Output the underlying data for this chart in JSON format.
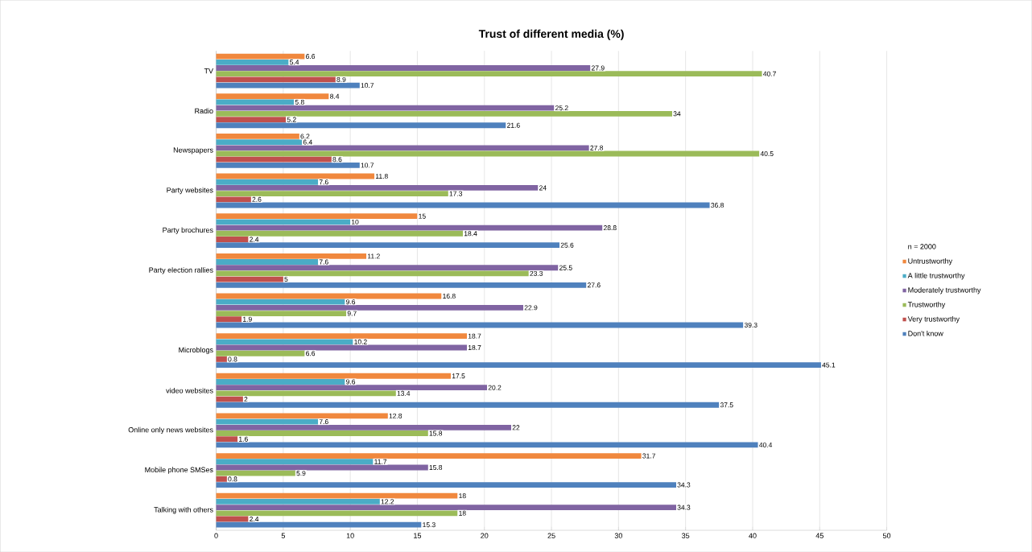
{
  "chart_data": {
    "type": "bar",
    "orientation": "horizontal",
    "title": "Trust of different media (%)",
    "legend_title": "n = 2000",
    "categories": [
      "TV",
      "Radio",
      "Newspapers",
      "Party websites",
      "Party brochures",
      "Party election rallies",
      null,
      "Microblogs",
      "video websites",
      "Online only news websites",
      "Mobile phone SMSes",
      "Talking with others"
    ],
    "series": [
      {
        "name": "Untrustworthy",
        "color": "#f0883e",
        "values": [
          6.6,
          8.4,
          6.2,
          11.8,
          15,
          11.2,
          16.8,
          18.7,
          17.5,
          12.8,
          31.7,
          18
        ]
      },
      {
        "name": "A little trustworthy",
        "color": "#4bacc6",
        "values": [
          5.4,
          5.8,
          6.4,
          7.6,
          10,
          7.6,
          9.6,
          10.2,
          9.6,
          7.6,
          11.7,
          12.2
        ]
      },
      {
        "name": "Moderately trustworthy",
        "color": "#8064a2",
        "values": [
          27.9,
          25.2,
          27.8,
          24,
          28.8,
          25.5,
          22.9,
          18.7,
          20.2,
          22,
          15.8,
          34.3
        ]
      },
      {
        "name": "Trustworthy",
        "color": "#9bbb59",
        "values": [
          40.7,
          34,
          40.5,
          17.3,
          18.4,
          23.3,
          9.7,
          6.6,
          13.4,
          15.8,
          5.9,
          18
        ]
      },
      {
        "name": "Very trustworthy",
        "color": "#c0504d",
        "values": [
          8.9,
          5.2,
          8.6,
          2.6,
          2.4,
          5,
          1.9,
          0.8,
          2,
          1.6,
          0.8,
          2.4
        ]
      },
      {
        "name": "Don't know",
        "color": "#4f81bd",
        "values": [
          10.7,
          21.6,
          10.7,
          36.8,
          25.6,
          27.6,
          39.3,
          45.1,
          37.5,
          40.4,
          34.3,
          15.3
        ]
      }
    ],
    "xlim": [
      0,
      50
    ],
    "xticks": [
      0,
      5,
      10,
      15,
      20,
      25,
      30,
      35,
      40,
      45,
      50
    ],
    "grid": "x",
    "legend": "right",
    "data_labels": true
  }
}
